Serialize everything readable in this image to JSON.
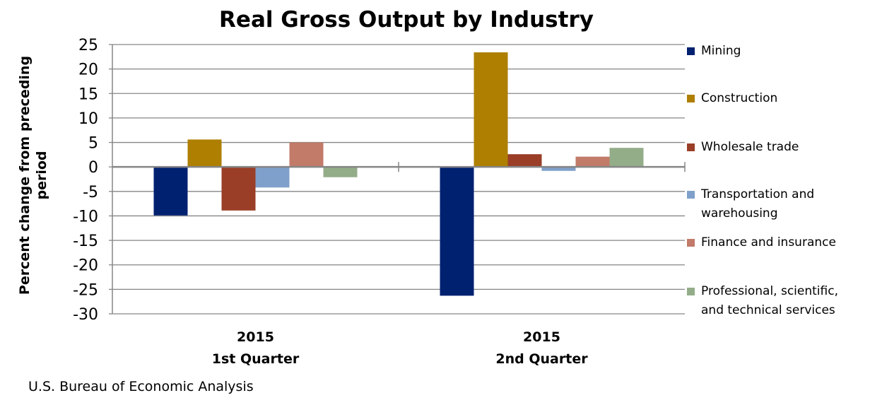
{
  "chart_data": {
    "type": "bar",
    "title": "Real Gross Output by Industry",
    "ylabel": "Percent change from preceding period",
    "xlabel": "",
    "ylim": [
      -30,
      25
    ],
    "yticks": [
      25,
      20,
      15,
      10,
      5,
      0,
      -5,
      -10,
      -15,
      -20,
      -25,
      -30
    ],
    "grid": true,
    "legend_placement": "right",
    "categories": [
      [
        "2015",
        "1st Quarter"
      ],
      [
        "2015",
        "2nd Quarter"
      ]
    ],
    "series": [
      {
        "name": "Mining",
        "color": "#002170",
        "values": [
          -9.9,
          -26.3
        ]
      },
      {
        "name": "Construction",
        "color": "#AE7F00",
        "values": [
          5.6,
          23.4
        ]
      },
      {
        "name": "Wholesale trade",
        "color": "#9A3E27",
        "values": [
          -8.9,
          2.6
        ]
      },
      {
        "name": "Transportation and warehousing",
        "color": "#7FA0CA",
        "values": [
          -4.2,
          -0.8
        ]
      },
      {
        "name": "Finance and insurance",
        "color": "#C27A69",
        "values": [
          5.0,
          2.1
        ]
      },
      {
        "name": "Professional, scientific, and technical services",
        "color": "#94AD89",
        "values": [
          -2.1,
          3.9
        ]
      }
    ],
    "legend_lines": [
      [
        "Mining"
      ],
      [
        "Construction"
      ],
      [
        "Wholesale trade"
      ],
      [
        "Transportation and",
        "warehousing"
      ],
      [
        "Finance and insurance"
      ],
      [
        "Professional, scientific,",
        "and technical services"
      ]
    ]
  },
  "source": "U.S. Bureau of Economic Analysis"
}
